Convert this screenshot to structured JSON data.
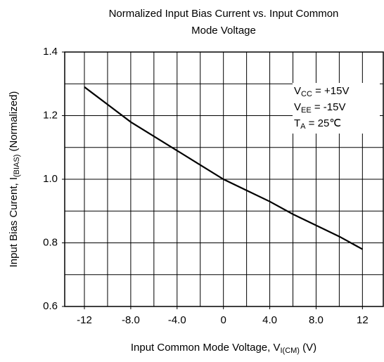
{
  "chart_data": {
    "type": "line",
    "title": [
      "Normalized Input Bias Current vs. Input Common",
      "Mode Voltage"
    ],
    "x_label": {
      "main": "Input Common Mode Voltage, V",
      "sub": "I(CM)",
      "rest": " (V)"
    },
    "y_label": {
      "main": "Input Bias Curent, I",
      "sub": "(BIAS)",
      "rest": " (Normalized)"
    },
    "annotations": [
      {
        "main": "V",
        "sub": "CC",
        "rest": " = +15V"
      },
      {
        "main": "V",
        "sub": "EE",
        "rest": " = -15V"
      },
      {
        "main": "T",
        "sub": "A",
        "rest": " = 25℃"
      }
    ],
    "series": [
      {
        "color": "#000000",
        "x": [
          -12,
          -10,
          -8,
          -6,
          -4,
          -2,
          0,
          2,
          4,
          6,
          8,
          10,
          12
        ],
        "values": [
          1.29,
          1.235,
          1.18,
          1.135,
          1.09,
          1.045,
          1.0,
          0.965,
          0.93,
          0.89,
          0.855,
          0.82,
          0.78
        ]
      }
    ],
    "xlim": [
      -13.7,
      13.8
    ],
    "xticks": [
      -12,
      {
        "value": -8,
        "label": "-8.0"
      },
      {
        "value": -4,
        "label": "-4.0"
      },
      0,
      {
        "value": 4,
        "label": "4.0"
      },
      {
        "value": 8,
        "label": "8.0"
      },
      12
    ],
    "ylim": [
      0.6,
      1.4
    ],
    "yticks": [
      0.6,
      0.8,
      {
        "value": 1.0,
        "label": "1.0"
      },
      1.2,
      1.4
    ],
    "grid": true,
    "xgrid_step": 2,
    "ygrid_step": 0.1
  }
}
